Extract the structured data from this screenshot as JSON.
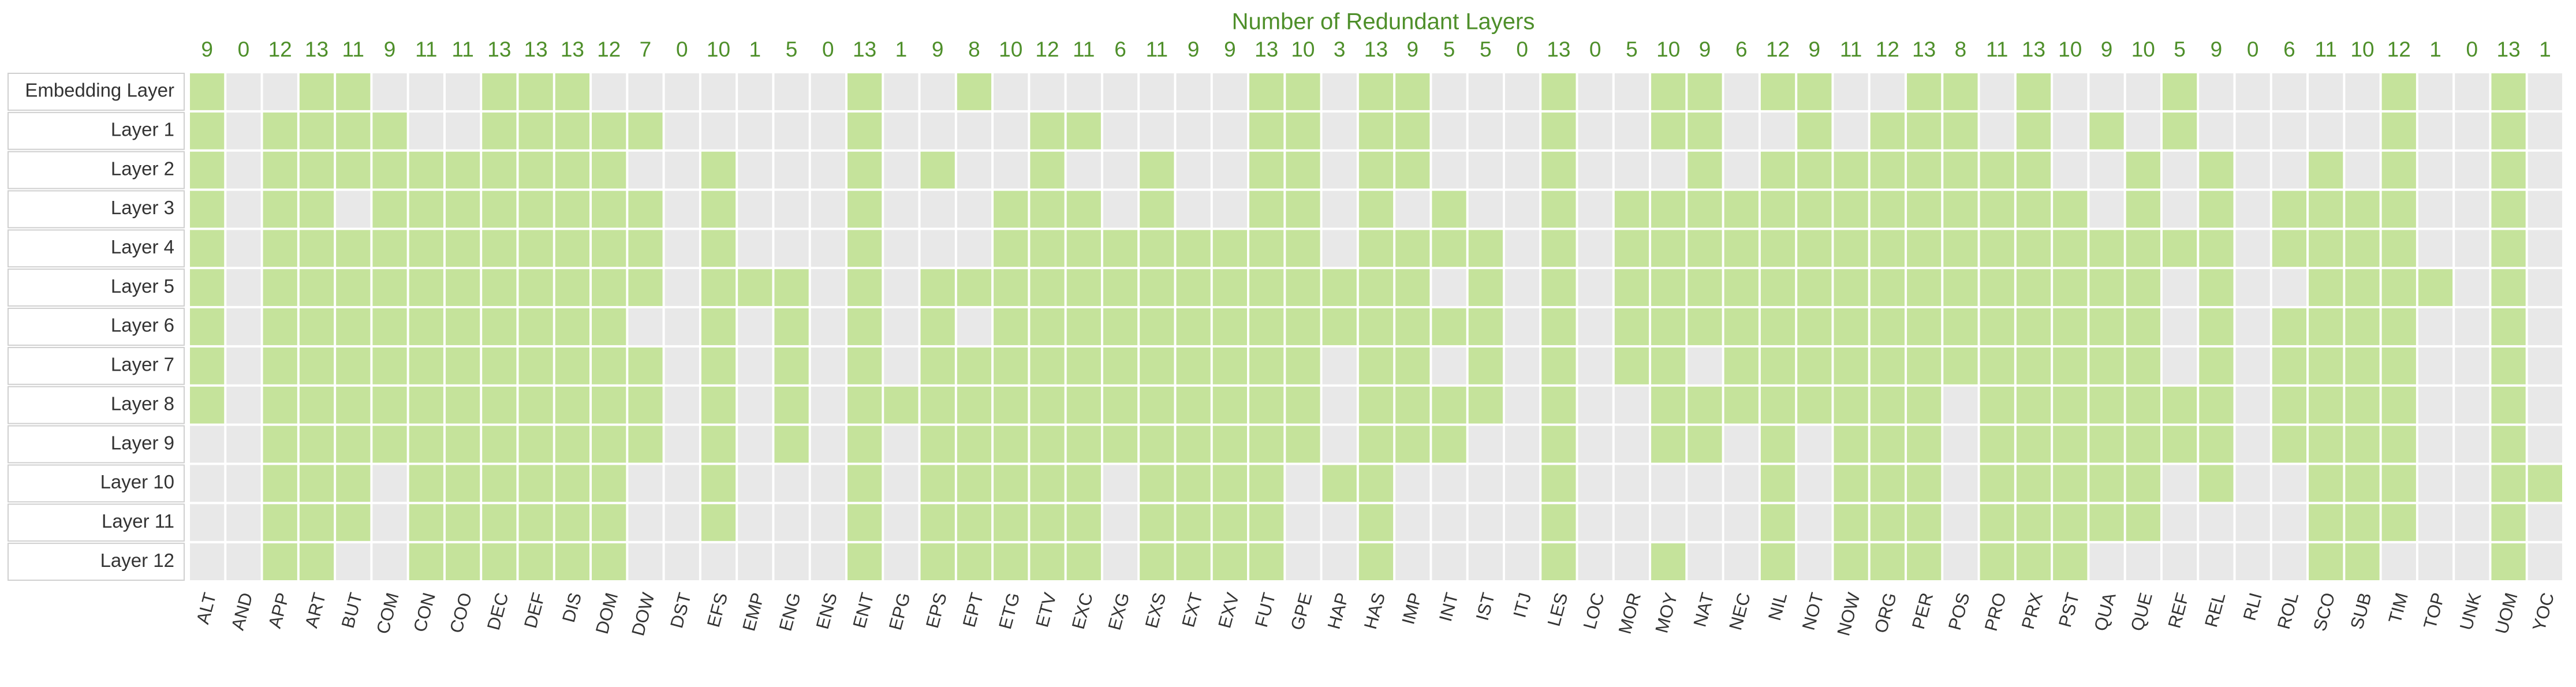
{
  "chart_data": {
    "type": "heatmap",
    "title": "Number of Redundant Layers",
    "rows": [
      "Embedding Layer",
      "Layer 1",
      "Layer 2",
      "Layer 3",
      "Layer 4",
      "Layer 5",
      "Layer 6",
      "Layer 7",
      "Layer 8",
      "Layer 9",
      "Layer 10",
      "Layer 11",
      "Layer 12"
    ],
    "columns": [
      "ALT",
      "AND",
      "APP",
      "ART",
      "BUT",
      "COM",
      "CON",
      "COO",
      "DEC",
      "DEF",
      "DIS",
      "DOM",
      "DOW",
      "DST",
      "EFS",
      "EMP",
      "ENG",
      "ENS",
      "ENT",
      "EPG",
      "EPS",
      "EPT",
      "ETG",
      "ETV",
      "EXC",
      "EXG",
      "EXS",
      "EXT",
      "EXV",
      "FUT",
      "GPE",
      "HAP",
      "HAS",
      "IMP",
      "INT",
      "IST",
      "ITJ",
      "LES",
      "LOC",
      "MOR",
      "MOY",
      "NAT",
      "NEC",
      "NIL",
      "NOT",
      "NOW",
      "ORG",
      "PER",
      "POS",
      "PRO",
      "PRX",
      "PST",
      "QUA",
      "QUE",
      "REF",
      "REL",
      "RLI",
      "ROL",
      "SCO",
      "SUB",
      "TIM",
      "TOP",
      "UNK",
      "UOM",
      "YOC"
    ],
    "column_totals": [
      9,
      0,
      12,
      13,
      11,
      9,
      11,
      11,
      13,
      13,
      13,
      12,
      7,
      0,
      10,
      1,
      5,
      0,
      13,
      1,
      9,
      8,
      10,
      12,
      11,
      6,
      11,
      9,
      9,
      13,
      10,
      3,
      13,
      9,
      5,
      5,
      0,
      13,
      0,
      5,
      10,
      9,
      6,
      12,
      9,
      11,
      12,
      13,
      8,
      11,
      13,
      10,
      9,
      10,
      5,
      9,
      0,
      6,
      11,
      10,
      12,
      1,
      0,
      13,
      1
    ],
    "values": [
      [
        1,
        0,
        0,
        1,
        1,
        0,
        0,
        0,
        1,
        1,
        1,
        0,
        0,
        0,
        0,
        0,
        0,
        0,
        1,
        0,
        0,
        1,
        0,
        0,
        0,
        0,
        0,
        0,
        0,
        1,
        1,
        0,
        1,
        1,
        0,
        0,
        0,
        1,
        0,
        0,
        1,
        1,
        0,
        1,
        1,
        0,
        0,
        1,
        1,
        0,
        1,
        0,
        0,
        0,
        1,
        0,
        0,
        0,
        0,
        0,
        1,
        0,
        0,
        1,
        0
      ],
      [
        1,
        0,
        1,
        1,
        1,
        1,
        0,
        0,
        1,
        1,
        1,
        1,
        1,
        0,
        0,
        0,
        0,
        0,
        1,
        0,
        0,
        0,
        0,
        1,
        1,
        0,
        0,
        0,
        0,
        1,
        1,
        0,
        1,
        1,
        0,
        0,
        0,
        1,
        0,
        0,
        1,
        1,
        0,
        0,
        1,
        0,
        1,
        1,
        1,
        0,
        1,
        0,
        1,
        0,
        1,
        0,
        0,
        0,
        0,
        0,
        1,
        0,
        0,
        1,
        0
      ],
      [
        1,
        0,
        1,
        1,
        1,
        1,
        1,
        1,
        1,
        1,
        1,
        1,
        0,
        0,
        1,
        0,
        0,
        0,
        1,
        0,
        1,
        0,
        0,
        1,
        0,
        0,
        1,
        0,
        0,
        1,
        1,
        0,
        1,
        1,
        0,
        0,
        0,
        1,
        0,
        0,
        0,
        1,
        0,
        1,
        1,
        1,
        1,
        1,
        1,
        1,
        1,
        0,
        0,
        1,
        0,
        1,
        0,
        0,
        1,
        0,
        1,
        0,
        0,
        1,
        0
      ],
      [
        1,
        0,
        1,
        1,
        0,
        1,
        1,
        1,
        1,
        1,
        1,
        1,
        1,
        0,
        1,
        0,
        0,
        0,
        1,
        0,
        0,
        0,
        1,
        1,
        1,
        0,
        1,
        0,
        0,
        1,
        1,
        0,
        1,
        0,
        1,
        0,
        0,
        1,
        0,
        1,
        1,
        1,
        1,
        1,
        1,
        1,
        1,
        1,
        1,
        1,
        1,
        1,
        0,
        1,
        0,
        1,
        0,
        1,
        1,
        1,
        1,
        0,
        0,
        1,
        0
      ],
      [
        1,
        0,
        1,
        1,
        1,
        1,
        1,
        1,
        1,
        1,
        1,
        1,
        1,
        0,
        1,
        0,
        0,
        0,
        1,
        0,
        0,
        0,
        1,
        1,
        1,
        1,
        1,
        1,
        1,
        1,
        1,
        0,
        1,
        1,
        1,
        1,
        0,
        1,
        0,
        1,
        1,
        1,
        1,
        1,
        1,
        1,
        1,
        1,
        1,
        1,
        1,
        1,
        1,
        1,
        1,
        1,
        0,
        1,
        1,
        1,
        1,
        0,
        0,
        1,
        0
      ],
      [
        1,
        0,
        1,
        1,
        1,
        1,
        1,
        1,
        1,
        1,
        1,
        1,
        1,
        0,
        1,
        1,
        1,
        0,
        1,
        0,
        1,
        1,
        1,
        1,
        1,
        1,
        1,
        1,
        1,
        1,
        1,
        1,
        1,
        1,
        0,
        1,
        0,
        1,
        0,
        1,
        1,
        1,
        1,
        1,
        1,
        1,
        1,
        1,
        1,
        1,
        1,
        1,
        1,
        1,
        0,
        1,
        0,
        0,
        1,
        1,
        1,
        1,
        0,
        1,
        0
      ],
      [
        1,
        0,
        1,
        1,
        1,
        1,
        1,
        1,
        1,
        1,
        1,
        1,
        0,
        0,
        1,
        0,
        1,
        0,
        1,
        0,
        1,
        0,
        1,
        1,
        1,
        1,
        1,
        1,
        1,
        1,
        1,
        1,
        1,
        1,
        1,
        1,
        0,
        1,
        0,
        1,
        1,
        1,
        1,
        1,
        1,
        1,
        1,
        1,
        1,
        1,
        1,
        1,
        1,
        1,
        0,
        1,
        0,
        1,
        1,
        1,
        1,
        0,
        0,
        1,
        0
      ],
      [
        1,
        0,
        1,
        1,
        1,
        1,
        1,
        1,
        1,
        1,
        1,
        1,
        1,
        0,
        1,
        0,
        1,
        0,
        1,
        0,
        1,
        1,
        1,
        1,
        1,
        1,
        1,
        1,
        1,
        1,
        1,
        0,
        1,
        1,
        0,
        1,
        0,
        1,
        0,
        1,
        1,
        0,
        1,
        1,
        1,
        1,
        1,
        1,
        1,
        1,
        1,
        1,
        1,
        1,
        0,
        1,
        0,
        1,
        1,
        1,
        1,
        0,
        0,
        1,
        0
      ],
      [
        1,
        0,
        1,
        1,
        1,
        1,
        1,
        1,
        1,
        1,
        1,
        1,
        1,
        0,
        1,
        0,
        1,
        0,
        1,
        1,
        1,
        1,
        1,
        1,
        1,
        1,
        1,
        1,
        1,
        1,
        1,
        0,
        1,
        1,
        1,
        1,
        0,
        1,
        0,
        0,
        1,
        1,
        1,
        1,
        1,
        1,
        1,
        1,
        0,
        1,
        1,
        1,
        1,
        1,
        1,
        1,
        0,
        1,
        1,
        1,
        1,
        0,
        0,
        1,
        0
      ],
      [
        0,
        0,
        1,
        1,
        1,
        1,
        1,
        1,
        1,
        1,
        1,
        1,
        1,
        0,
        1,
        0,
        1,
        0,
        1,
        0,
        1,
        1,
        1,
        1,
        1,
        1,
        1,
        1,
        1,
        1,
        1,
        0,
        1,
        1,
        1,
        0,
        0,
        1,
        0,
        0,
        1,
        1,
        0,
        1,
        0,
        1,
        1,
        1,
        0,
        1,
        1,
        1,
        1,
        1,
        1,
        1,
        0,
        1,
        1,
        1,
        1,
        0,
        0,
        1,
        0
      ],
      [
        0,
        0,
        1,
        1,
        1,
        0,
        1,
        1,
        1,
        1,
        1,
        1,
        0,
        0,
        1,
        0,
        0,
        0,
        1,
        0,
        1,
        1,
        1,
        1,
        1,
        0,
        1,
        1,
        1,
        1,
        0,
        1,
        1,
        0,
        0,
        0,
        0,
        1,
        0,
        0,
        0,
        0,
        0,
        1,
        0,
        1,
        1,
        1,
        0,
        1,
        1,
        1,
        1,
        1,
        0,
        1,
        0,
        0,
        1,
        1,
        1,
        0,
        0,
        1,
        1
      ],
      [
        0,
        0,
        1,
        1,
        1,
        0,
        1,
        1,
        1,
        1,
        1,
        1,
        0,
        0,
        1,
        0,
        0,
        0,
        1,
        0,
        1,
        1,
        1,
        1,
        1,
        0,
        1,
        1,
        1,
        1,
        0,
        0,
        1,
        0,
        0,
        0,
        0,
        1,
        0,
        0,
        0,
        0,
        0,
        1,
        0,
        1,
        1,
        1,
        0,
        1,
        1,
        1,
        1,
        1,
        0,
        0,
        0,
        0,
        1,
        1,
        1,
        0,
        0,
        1,
        0
      ],
      [
        0,
        0,
        1,
        1,
        0,
        0,
        1,
        1,
        1,
        1,
        1,
        1,
        0,
        0,
        0,
        0,
        0,
        0,
        1,
        0,
        1,
        1,
        1,
        1,
        1,
        0,
        1,
        1,
        1,
        1,
        0,
        0,
        1,
        0,
        0,
        0,
        0,
        1,
        0,
        0,
        1,
        0,
        0,
        1,
        0,
        1,
        1,
        1,
        0,
        1,
        1,
        1,
        0,
        0,
        0,
        0,
        0,
        0,
        1,
        1,
        0,
        0,
        0,
        1,
        0
      ]
    ],
    "colors": {
      "on": "#c5e39b",
      "off": "#e8e8e8"
    }
  }
}
